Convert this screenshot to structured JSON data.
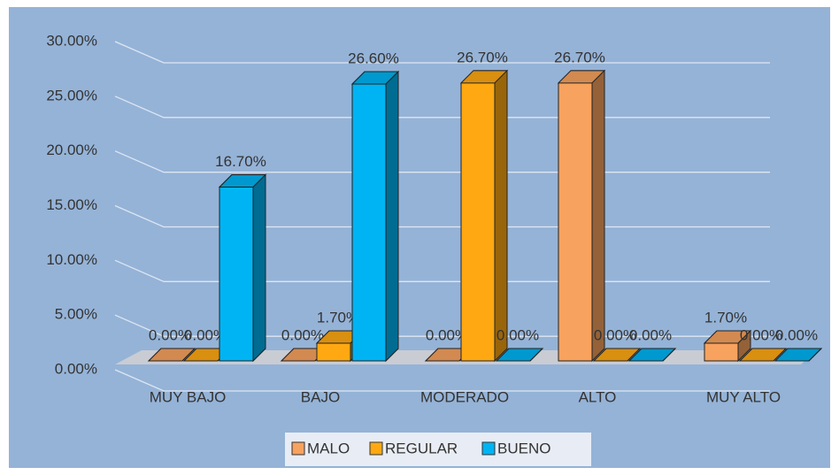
{
  "chart_data": {
    "type": "bar3d",
    "categories": [
      "MUY BAJO",
      "BAJO",
      "MODERADO",
      "ALTO",
      "MUY ALTO"
    ],
    "series": [
      {
        "name": "MALO",
        "color": "#f7a25e",
        "values": [
          0,
          0,
          0,
          26.7,
          1.7
        ],
        "value_labels": [
          "0.00%",
          "0.00%",
          "0.00%",
          "26.70%",
          "1.70%"
        ]
      },
      {
        "name": "REGULAR",
        "color": "#ffa812",
        "values": [
          0,
          1.7,
          26.7,
          0,
          0
        ],
        "value_labels": [
          "0.00%",
          "1.70%",
          "26.70%",
          "0.00%",
          "0.00%"
        ]
      },
      {
        "name": "BUENO",
        "color": "#00b4f4",
        "values": [
          16.7,
          26.6,
          0,
          0,
          0
        ],
        "value_labels": [
          "16.70%",
          "26.60%",
          "0.00%",
          "0.00%",
          "0.00%"
        ]
      }
    ],
    "ylim": [
      0,
      30
    ],
    "yticks": [
      {
        "value": 0,
        "label": "0.00%"
      },
      {
        "value": 5,
        "label": "5.00%"
      },
      {
        "value": 10,
        "label": "10.00%"
      },
      {
        "value": 15,
        "label": "15.00%"
      },
      {
        "value": 20,
        "label": "20.00%"
      },
      {
        "value": 25,
        "label": "25.00%"
      },
      {
        "value": 30,
        "label": "30.00%"
      }
    ],
    "grid": true,
    "legend": "bottom"
  }
}
